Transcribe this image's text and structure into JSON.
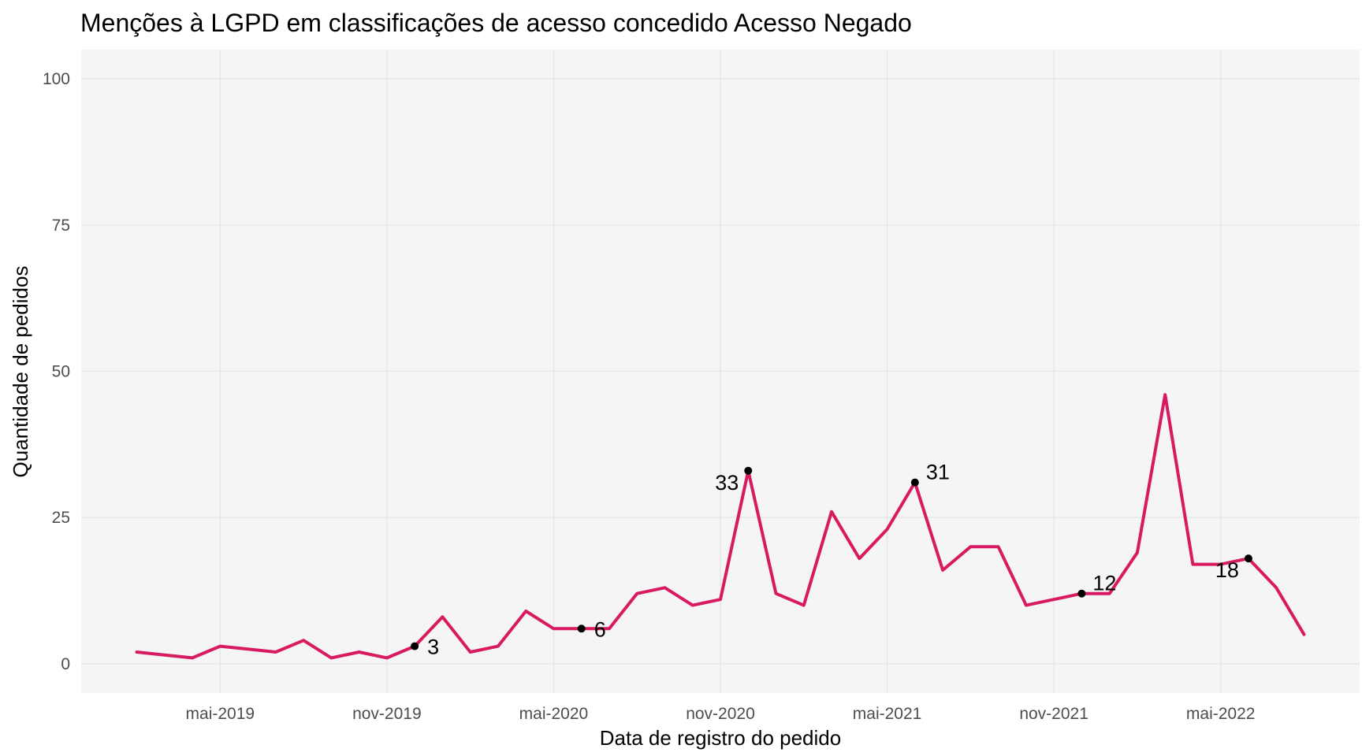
{
  "chart_data": {
    "type": "line",
    "title": "Menções à LGPD em classificações de acesso concedido Acesso Negado",
    "xlabel": "Data de registro do pedido",
    "ylabel": "Quantidade de pedidos",
    "x_tick_labels": [
      "mai-2019",
      "nov-2019",
      "mai-2020",
      "nov-2020",
      "mai-2021",
      "nov-2021",
      "mai-2022"
    ],
    "x_ticks": [
      "2019-05",
      "2019-11",
      "2020-05",
      "2020-11",
      "2021-05",
      "2021-11",
      "2022-05"
    ],
    "y_ticks": [
      0,
      25,
      50,
      75,
      100
    ],
    "ylim": [
      -5,
      105
    ],
    "xlim": [
      "2018-12",
      "2022-10"
    ],
    "grid": true,
    "colors": {
      "line": "#d81b60",
      "panel": "#f5f5f5",
      "points": "#000000"
    },
    "series": [
      {
        "x": [
          "2019-02",
          "2019-03",
          "2019-04",
          "2019-05",
          "2019-06",
          "2019-07",
          "2019-08",
          "2019-09",
          "2019-10",
          "2019-11",
          "2019-12",
          "2020-01",
          "2020-02",
          "2020-03",
          "2020-04",
          "2020-05",
          "2020-06",
          "2020-07",
          "2020-08",
          "2020-09",
          "2020-10",
          "2020-11",
          "2020-12",
          "2021-01",
          "2021-02",
          "2021-03",
          "2021-04",
          "2021-05",
          "2021-06",
          "2021-07",
          "2021-08",
          "2021-09",
          "2021-10",
          "2021-11",
          "2021-12",
          "2022-01",
          "2022-02",
          "2022-03",
          "2022-04",
          "2022-05",
          "2022-06",
          "2022-07",
          "2022-08"
        ],
        "values": [
          2,
          1.5,
          1,
          3,
          2.5,
          2,
          4,
          1,
          2,
          1,
          3,
          8,
          2,
          3,
          9,
          6,
          6,
          6,
          12,
          13,
          10,
          11,
          33,
          12,
          10,
          26,
          18,
          23,
          31,
          16,
          20,
          20,
          10,
          11,
          12,
          12,
          19,
          46,
          17,
          17,
          18,
          13,
          5
        ]
      }
    ],
    "annotations": [
      {
        "x": "2019-12",
        "y": 3,
        "label": "3",
        "position": "right"
      },
      {
        "x": "2020-06",
        "y": 6,
        "label": "6",
        "position": "right"
      },
      {
        "x": "2020-12",
        "y": 33,
        "label": "33",
        "position": "left-below"
      },
      {
        "x": "2021-06",
        "y": 31,
        "label": "31",
        "position": "right-above"
      },
      {
        "x": "2021-12",
        "y": 12,
        "label": "12",
        "position": "right-above"
      },
      {
        "x": "2022-06",
        "y": 18,
        "label": "18",
        "position": "left-below"
      }
    ]
  }
}
